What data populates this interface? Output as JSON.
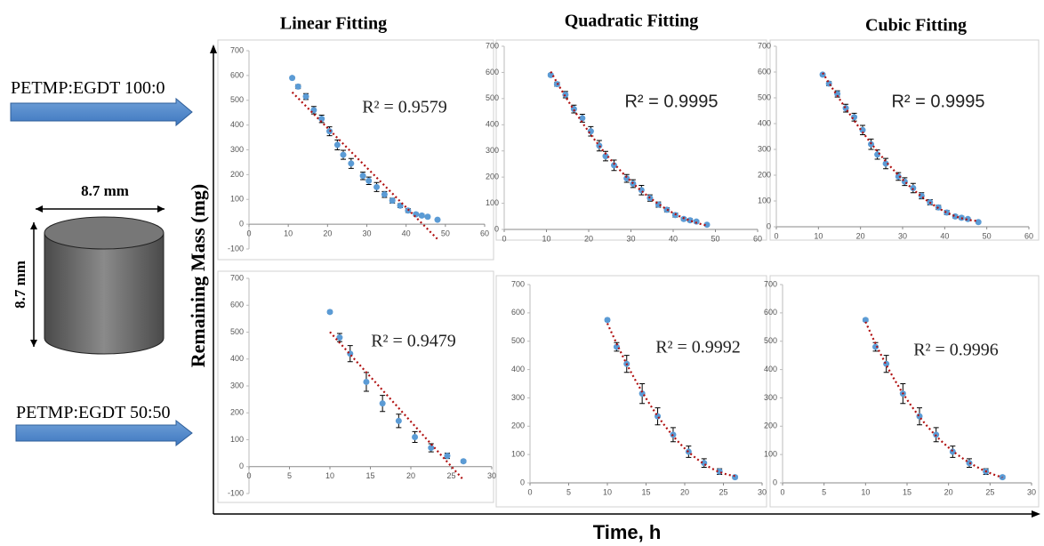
{
  "figure": {
    "y_label": "Remaining Mass  (mg)",
    "x_label": "Time, h",
    "row_labels": [
      "PETMP:EGDT 100:0",
      "PETMP:EGDT 50:50"
    ],
    "diagram": {
      "width_label": "8.7 mm",
      "height_label": "8.7 mm"
    }
  },
  "chart_data": [
    {
      "type": "scatter",
      "title": "Linear Fitting",
      "annotation": "R² = 0.9579",
      "trendline": "linear",
      "color": "#5b9bd5",
      "x": [
        11,
        12.5,
        14.5,
        16.5,
        18.5,
        20.5,
        22.5,
        24,
        26,
        29,
        30.5,
        32.5,
        34.5,
        36.5,
        38.5,
        40.5,
        42.5,
        44,
        45.5,
        48
      ],
      "values": [
        590,
        555,
        515,
        460,
        425,
        375,
        320,
        280,
        245,
        195,
        175,
        150,
        120,
        95,
        75,
        55,
        40,
        35,
        30,
        18
      ],
      "errors": [
        5,
        8,
        12,
        15,
        15,
        18,
        20,
        18,
        20,
        15,
        15,
        18,
        12,
        10,
        8,
        8,
        6,
        6,
        5,
        4
      ],
      "xlim": [
        0,
        60
      ],
      "xticks": [
        0,
        10,
        20,
        30,
        40,
        50,
        60
      ],
      "ylim": [
        -100,
        700
      ],
      "yticks": [
        -100,
        0,
        100,
        200,
        300,
        400,
        500,
        600,
        700
      ]
    },
    {
      "type": "scatter",
      "title": "Quadratic Fitting",
      "annotation": "R² = 0.9995",
      "trendline": "quadratic",
      "color": "#5b9bd5",
      "x": [
        11,
        12.5,
        14.5,
        16.5,
        18.5,
        20.5,
        22.5,
        24,
        26,
        29,
        30.5,
        32.5,
        34.5,
        36.5,
        38.5,
        40.5,
        42.5,
        44,
        45.5,
        48
      ],
      "values": [
        590,
        555,
        515,
        460,
        425,
        375,
        320,
        280,
        245,
        195,
        175,
        150,
        120,
        95,
        75,
        55,
        40,
        35,
        30,
        18
      ],
      "errors": [
        5,
        8,
        12,
        15,
        15,
        18,
        20,
        18,
        20,
        15,
        15,
        18,
        12,
        10,
        8,
        8,
        6,
        6,
        5,
        4
      ],
      "xlim": [
        0,
        60
      ],
      "xticks": [
        0,
        10,
        20,
        30,
        40,
        50,
        60
      ],
      "ylim": [
        0,
        700
      ],
      "yticks": [
        0,
        100,
        200,
        300,
        400,
        500,
        600,
        700
      ]
    },
    {
      "type": "scatter",
      "title": "Cubic Fitting",
      "annotation": "R² = 0.9995",
      "trendline": "cubic",
      "color": "#5b9bd5",
      "x": [
        11,
        12.5,
        14.5,
        16.5,
        18.5,
        20.5,
        22.5,
        24,
        26,
        29,
        30.5,
        32.5,
        34.5,
        36.5,
        38.5,
        40.5,
        42.5,
        44,
        45.5,
        48
      ],
      "values": [
        590,
        555,
        515,
        460,
        425,
        375,
        320,
        280,
        245,
        195,
        175,
        150,
        120,
        95,
        75,
        55,
        40,
        35,
        30,
        18
      ],
      "errors": [
        5,
        8,
        12,
        15,
        15,
        18,
        20,
        18,
        20,
        15,
        15,
        18,
        12,
        10,
        8,
        8,
        6,
        6,
        5,
        4
      ],
      "xlim": [
        0,
        60
      ],
      "xticks": [
        0,
        10,
        20,
        30,
        40,
        50,
        60
      ],
      "ylim": [
        0,
        700
      ],
      "yticks": [
        0,
        100,
        200,
        300,
        400,
        500,
        600,
        700
      ]
    },
    {
      "type": "scatter",
      "annotation": "R² = 0.9479",
      "trendline": "linear",
      "color": "#5b9bd5",
      "x": [
        10,
        11.2,
        12.5,
        14.5,
        16.5,
        18.5,
        20.5,
        22.5,
        24.5,
        26.5
      ],
      "values": [
        575,
        480,
        420,
        315,
        235,
        170,
        110,
        70,
        40,
        20
      ],
      "errors": [
        5,
        15,
        30,
        35,
        30,
        25,
        20,
        15,
        10,
        5
      ],
      "xlim": [
        0,
        30
      ],
      "xticks": [
        0,
        5,
        10,
        15,
        20,
        25,
        30
      ],
      "ylim": [
        -100,
        700
      ],
      "yticks": [
        -100,
        0,
        100,
        200,
        300,
        400,
        500,
        600,
        700
      ]
    },
    {
      "type": "scatter",
      "annotation": "R² = 0.9992",
      "trendline": "quadratic",
      "color": "#5b9bd5",
      "x": [
        10,
        11.2,
        12.5,
        14.5,
        16.5,
        18.5,
        20.5,
        22.5,
        24.5,
        26.5
      ],
      "values": [
        575,
        480,
        420,
        315,
        235,
        170,
        110,
        70,
        40,
        20
      ],
      "errors": [
        5,
        15,
        30,
        35,
        30,
        25,
        20,
        15,
        10,
        5
      ],
      "xlim": [
        0,
        30
      ],
      "xticks": [
        0,
        5,
        10,
        15,
        20,
        25,
        30
      ],
      "ylim": [
        0,
        700
      ],
      "yticks": [
        0,
        100,
        200,
        300,
        400,
        500,
        600,
        700
      ]
    },
    {
      "type": "scatter",
      "annotation": "R² = 0.9996",
      "trendline": "cubic",
      "color": "#5b9bd5",
      "x": [
        10,
        11.2,
        12.5,
        14.5,
        16.5,
        18.5,
        20.5,
        22.5,
        24.5,
        26.5
      ],
      "values": [
        575,
        480,
        420,
        315,
        235,
        170,
        110,
        70,
        40,
        20
      ],
      "errors": [
        5,
        15,
        30,
        35,
        30,
        25,
        20,
        15,
        10,
        5
      ],
      "xlim": [
        0,
        30
      ],
      "xticks": [
        0,
        5,
        10,
        15,
        20,
        25,
        30
      ],
      "ylim": [
        0,
        700
      ],
      "yticks": [
        0,
        100,
        200,
        300,
        400,
        500,
        600,
        700
      ]
    }
  ]
}
